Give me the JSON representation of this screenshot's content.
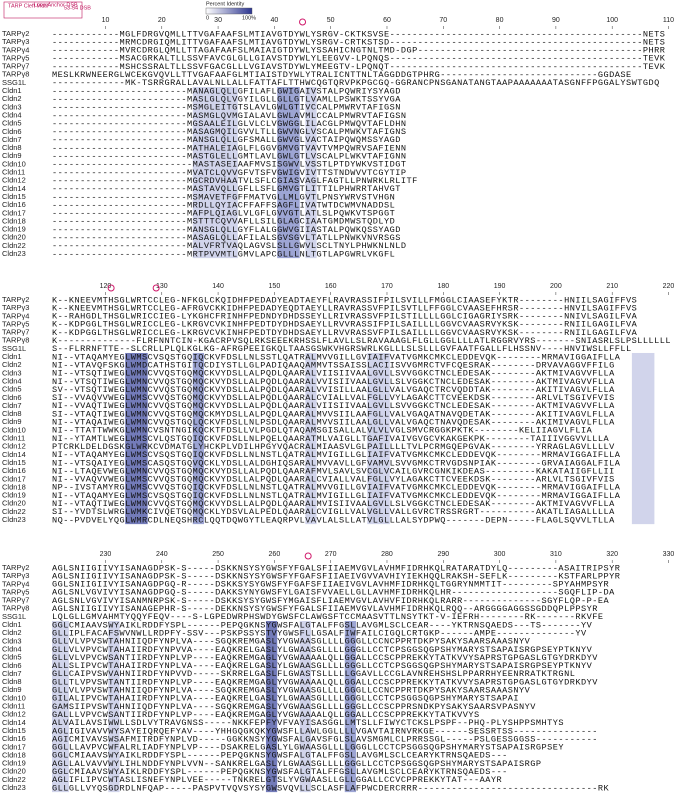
{
  "legend": {
    "cleft": "TARP Cleft Motif",
    "loop": "Loop Anchor DSB",
    "dsb": "53-54 DSB",
    "identity": "Percent Identity",
    "min": "0",
    "max": "100%"
  },
  "names": [
    "TARPγ2",
    "TARPγ3",
    "TARPγ4",
    "TARPγ5",
    "TARPγ7",
    "TARPγ8",
    "SSG1L",
    "Cldn1",
    "Cldn2",
    "Cldn3",
    "Cldn4",
    "Cldn5",
    "Cldn6",
    "Cldn7",
    "Cldn8",
    "Cldn9",
    "Cldn10",
    "Cldn11",
    "Cldn12",
    "Cldn14",
    "Cldn15",
    "Cldn16",
    "Cldn17",
    "Cldn18",
    "Cldn19",
    "Cldn20",
    "Cldn22",
    "Cldn23"
  ],
  "blocks": [
    {
      "positions": [
        10,
        20,
        30,
        40,
        50,
        60,
        70,
        80,
        90,
        100,
        110
      ],
      "sequences": [
        "------------MGLFDRGVQMLLTTVGAFAAFSLMTIAVGTDYWLYSRGV-CKTKSVSE---------------------------------------------NETS",
        "------------MRMCDRGIQMLITTVGAFAAFSLMTIAVGTDYWLYSRGV-CRTKSTSD---------------------------------------------NETS",
        "------------MVRCDRGLQMLLTTAGAFAAFSLMAIAIGTDYWLYSSAHICNGTNLTMD-DGP----------------------------------------PHRR",
        "------------MSACGRKALTLLSSVFAVCGLGLLGIAVSTDYWLYLEEGVV-LPQNQS---------------------------------------------TEVK",
        "------------MSHCSSRALTLLSSVFGACGLLLVGIAVSTDYWLYMEEGTV-LPQNQT---------------------------------------------TEVK",
        "MESLKRWNEERGLWCEKGVQVLLTTVGAFAAFGLMTIAISTDYWLYTRALICNTTNLTAGGDDGTPHRG----------------------------GGDASE",
        "-------------MK-TSRRGRALLAVALNLLALLFATTAFLTTHWCQGTQRVPKPGCGQ-GGRANCPNSGANATANGTAAPAAAAAAATASGNFFPGGALYSWTGDQ",
        "------------------------MANAGLQLLGFILAFLGWIGAIVSTALPQWRIYSYAGD",
        "------------------------MASLGLQLVGYILGLLGLLGTLVAMLLPSWKTSSYVGA",
        "------------------------MSMGLEITGTSLAVLGWLGTIVCCALPMWRVTAFIGSN",
        "------------------------MASMGLQVMGIALAVLGWLAVMLCCALPMWRVTAFIGSN",
        "------------------------MGSAALEILGLVLCLVGWGGLILACGLPMWQVTAFLDHN",
        "------------------------MASAGMQILGVVLTLLGWVNGLVSCALPMWKVTAFIGNS",
        "------------------------MANSGLQLLGFSMALLGWVGLVACTAIPQWQMSSYAGD",
        "------------------------MATHALEIAGLFLGGVGMVGTVAVTVMPQWRVSAFIENN",
        "------------------------MASTGLELLGMTLAVLGWLGTLVSCALPLWKVTAFIGNN",
        "-------------------------MASTASEIAAFMVSISGWVLVSSTLPTDYWKVSTIDGT",
        "------------------------MVATCLQVVGFVTSFVGWIGVIVTTSTNDWVVTCGYTIP",
        "------------------------MGCRDVHAATVLSFLCGIASVAGLFAGTLLPNWRKLRLITF",
        "------------------------MASTAVQLLGFLLSFLGMVGTLITTILPHWRRTAHVGT",
        "------------------------MSMAVETFGFFMATVGLLMLGVTLPNSYWRVSTVHGN",
        "------------------------MRDLLQYIACFFAFFSAGFLIVATWTDCWMVNADDSL",
        "------------------------MAFPLQIAGLVLGFLGVVGTLATLSLPQWKVTSPGGT",
        "------------------------MSTTTCQVVAFLLSILGLAGCIAATGMDMWSTQDLYD",
        "------------------------MANSGLQLLGYFLALGGWVGIIASTALPQWKQSSYAGD",
        "------------------------MASAGLQLLAFILALSGVSGVLTATLLPNWKVNVRSGS",
        "------------------------MALVFRTVAQLAGVSLSLLGWVLSCLTNYLPHWKNLNLD",
        "------------------------MRTPVVMTLGMVLAPCGLLLNLTGTLAPGWRLVKGFL"
      ]
    },
    {
      "positions": [
        120,
        130,
        140,
        150,
        160,
        170,
        180,
        190,
        200,
        210,
        220
      ],
      "sequences": [
        "K--KNEEVMTHSGLWRTCCLEG-NFKGLCKQIDHFPEDADYEADTAEYFLRAVRASSIFPILSVILLFMGGLCIAASEFYKTR--------HNIILSAGIFFVS",
        "K--KNEEVMTHSGLWRTCCLEG-AFRGVCKKIDHFPEDADYEQDTAEYLLRAVRASSVFPILSVTLLFFGGLCVAASEFHRSR--------HNVILSAGIFFVS",
        "K--RAHGDLTHSGLWRICCIEG-LYKGHCFRINHFPEDNDYDHDSSEYLLRIVRASSVFPILSTILLLLGGLCIGAGRIYSRK--------NNIVLSAGILFVA",
        "K--KDPGGLTHSGLWRICCLEG-LKRGVCVKINHFPEDTDYDHDSAEYLLRVVRASSIFPILSAILLLLGGVCVAASRVYKSK--------RNIILGAGILFVA",
        "K--KDPGGLTHSGLWRICCLEG-LKRGVCVKINHFPEDTDYDHDSAEYLLRVVRASSVFPILSAILLLLGGVCVAASRVYKSK--------RNIILGAGILFVA",
        "K--------------FLRFNNTCIN-KGACRPVSQLRKSEEEKRHSSLFLAVLLSLRAVAAAGLFLGLLGGLLLLATLRGGRVYRS-------SNIASRLSLPSLLLLLL",
        "S--FLRRNFTTE--SLCRLLPLQLKGLKG-AFRGPEEIGKQLTAASGSWKVHGRSWRLKGLLLSLSLLLGVFAATFGALLFLHSSNV----HNVIWSLLFFLL",
        "NI--VTAQAMYEGLWMSCVSQSTGQIQCKVFDSLLNLSSTLQATRALMVVGILLGVIAIFVATVGMKCMKCLEDDEVQK--------MRMAVIGGAIFLLA",
        "NI--VTAVQFSKGLWMDCATHSTGITQCDIYSTLLGLPADIQAAQAMMVTSSAISSLACIISVVGMRCTVFCQESRAK--------DRVAVAGGVFFILG",
        "NI--VTSQTIWEGLWMNCVVQSTGQMQCKVYDSLLALPQDLQAARALVIISIIVAALGVLLSVVGGKCTNCLEDESAK--------AKTMIVAGVVFLLA",
        "NI--VTSQTIWEGLWMNCVVQSTGQMQCKVYDSLLALPQDLQAARALVVISIIVAALGVLLSLVGGKCTNCLEDESAK--------AKTMIVAGVVFLLA",
        "SV--VTSQTIWEGLWMNCVVQSTGQMQCKVYDSLLALPQDLQAARALVVISILLAALGLLVALVGAQCTRCVQDDTAK--------AKITIVAGVLFLLA",
        "SI--VVAQVVWEGLWMSCVVQSTGQMQCKVYDSLLALPQDLQAARALCVIALLVALFGLLVYLAGAKCTTCVEEKDSK--------ARLVLTSGIVFVIS",
        "NI--VVAQTIWEGLWMNCVVQSTGQMQCKVYDSLLALPQDLQAARALVIISIIVAALGVLLSVVGGKCTNCLEDESAK--------AKTMIVAGVVFLLA",
        "SI--VTAQTIWEGLWMNCVVQSTGQMQCKMYDSLLALPQDLQAARALMVVSIILAAFGLLVALVGAQATNAVQDETAK--------AKITIVAGVLFLLA",
        "NI--VTAQAIWEGLWMNCVVQSTGQLQCKVFDSLLNLPSDLQAARALMVVSIILAALGLLVALVGAQCTNAVQDESAK--------AKIMIVAGVLFLLA",
        "NI--TTATTWWKGLWMNCVSNTNGIKQCKTFDSLLVLPGDLQTAQAMSGISALLALVLVLVGLSMVCRGGKPKTK--------KELIIAGVLFLIA",
        "NI--YTAMTLWEGLWMSCVLQSTGQIQCKVFDSLLNLPQELQAARATMLVAIGLLTGAFIVAIVGVGCVKAKGEKPK--------TAIIIVGGVVLLLA",
        "PTCRKLDELDGSKGLWRKCVDMATGLYHCKPLVDILHPGYVQACRALMIAASVLGLPAILLLLTVLPCRMGQEPGVAK--------YRRAGLAGVLLLLV",
        "NI--VTAQAMYEGLWMSCVSQSTGQIQCKVFDSLLNLNSTLQATRALMVIGILLGLIAIFVATVGMKCMKCLEDDEVQK--------MRMAVIGGAIFLLA",
        "NI--VTSQAIYEGLWMSCASQSTGQVQCKLYDSLLALDGHIQSARALMVVAVLLGFVAMVLSVVGMKCTRVGDSNPIAK--------GRVAIAGGALFILA",
        "NI--LTAQEVWEGLWMNCVVQSTGQMQCKVYDSLLALPQDLQAARAFMVLSAVLSVCGLVCAILGVRCGNKIKDEAS---------KAKATAIIGFLLII",
        "NI--VVAQVVWEGLWMSCVVQSTGQMQCKVYDSLLALPQDLQAARALCVIALLVALFGLLVYLAGAKCTTCVEEKDSK--------ARLVLTSGIVFVIS",
        "NP--IVSTAMYRGLWMSCVVQSTGQIQCKVFDSLLNLNSTLQATRALMVVGILLGVIAIFVATVGMKCMKCLEDDEVQK--------MRMAVIGGAIFLLA",
        "NI--VTAQAMYEGLWMSCVSQSTGQIQCKVFDSLLNLNSTLQATRALMVIGILLGLIAIFVATVGMKCMKCLEDDEVQK--------MRMAVIGGAIFLLA",
        "NI--VTAQTIWEGLWMNCVVQSTGQMQCKVYDSLLALPQDLQAARALMVISIIVAALGVLLSLVGGKCTNCLEDESAK--------AKTMIVAGVVFLLA",
        "SI--YVDTSLWRGLWMKCIVQETGQMQCKLYDSVLALPEDLQAARALCVIGLLVALVGLLVALLGVRCTRSSRGRT----------AKATLIAGALLLLA",
        "NQ--PVDVELYQGLWMRCDLNEQSHRCLQQTDQWGYTLEAQRPVLVAVLALSLLATVLGLLLALSYDPWQ-------DEPN-----FLAGLSQVVLTLLA"
      ]
    },
    {
      "positions": [
        230,
        240,
        250,
        260,
        270,
        280,
        290,
        300,
        310,
        320,
        330
      ],
      "sequences": [
        "AGLSNIIGIIVYISANAGDPSK-S-----DSKKNSYSYGWSFYFGALSFIIAEMVGVLAVHMFIDRHKQLRATARATDYLQ---------ASAITRIPSYR",
        "AGLSNIIGIIVYISANAGDPSK-S-----DSKKNSYSYGWSFYFGAFSFIIAEIVGVVAVHIYIEKHQQLRAKSH-SEFLK---------KSTFARLPPYR",
        "GGLSNIIGIIVYISANAGDPGQ-R-----DSKKSYSYGWSFYFGAFSFIIAEIVGVLAVHMFIDRHKQLTGGRYNMMTIT---------SPYAHMPSYR",
        "AGLSNLVGVIVYISANAGDPGQ-S-----DAKKSYNYGWSFYLGAISFVVAELLGLLAVHMFIDRHKQLHR-------------------SGQFLIP-DA",
        "AGLSNLVGVIVYISANMNRPSK-S-----DSKKSYSYGWSFYMGAISFLIAEMVGVLAVHVFIDRHKQLRARR--------------SGYFLQP-P-EA",
        "AGLSNIIGIIVYISANAGEPHR-S-----DEKKNSYSYGWSFYFGALSFIIAEMVGVLAVHMFIDRHKQLRQQ--ARGGGGAGGSSGDDQPLPPSYR",
        "LQLGLLGMVAHMTYQQYFEQV----S-LGPEDWRPHSWDYGWSFCLAWGSFTCCMAASVTTLNSYTKT-V-IEFRH--------RK-------RKVFE",
        "GGLCMIAAVSWYAIKLRDDFYSPL------PEPQGKNSYGWSFALGTALFFGSLLAVGMLSCLCEAR----YKTRNSQAEDS---TS-------YV",
        "GLLIPLFACAFSWVNWLLRDPFY-SSV---PSKPSSYSTVYGWSFLLGSALFIWFAILCIGQLCRTGKP------AMPE--------------YV",
        "GLLVLVPVSWTAHNIIQDFYNPLVA----SGQKREMGASLYVGWAASGLLLLGGGLLCCNCPPRTDKPYSAKYSAARSAAASNYV",
        "GLLVLVPVCWTAHAIIRDFYNPVVA----EAQKRELGASLYLGWAASGLLLLGGGLLCCTCPSGGSQGPSHYMARYSTSAPAISRGPSEYPTKNYV",
        "GLLVLVPVCWSANTIIRDFYNPLVP----EAQKREMGAGLYVGWAAAALQLLGGALLCCSCPPREKKYTATKVVYSAPRSTGPGASLGTGYDRKDYV",
        "ALLSLIPVCWTAHAIIRDFYNPLVA----EAQKRELGASLYLGWAASGLLLLGGGLLCCTCPSGGSQGPSHYMARYSTSAPAISRGPSEYPTKNYV",
        "GLLCAIPVSWVAHNIIRDFYNPVVD-----SKRRELGASLFLGWASTSLLLLLGGAVLLCCGLAVNREHSHSLPPARRHYEENRRATKTRGNL",
        "GLLTLVPVSWTANTIIRDFYNPLVP----EAQKREMGAGLYVGWAAAALQLLGGALLCCSCPPREKKYTATKVVYSAPRSTGPGASLGTGYDRKDYV",
        "GLLVLVPVSWTAHNIIQDFYNPLVA----SGQKREMGASLYVGWAASGLLLLGGGLLCCNCPPRTDKPYSAKYSAARSAAASNYV",
        "GILALIPVCWTAHAIIRDFYNPLVA----EAQKRELGASLYLGWAASGLLLLGGGLLCCTCPSGGSQGPSHYMARYSTSAPAI",
        "GAMSIIPVSWTAHNIIQDFYNPLVA----SGQKREMGASLYVGWAASGLLLLGGGLLCCSCPPRSNDKPYSAKYSAARSVPASNYV",
        "GALLLVPVCWSANTIIRDFYNPLVP----EAQKREMGAGLYVGWAAAALQLLGGALLCCSCPPREKKYTATKVVYS",
        "ALVAILAVSIWWLLSDLVYTRAVGNSS-----NKKFEPFYVFVAYISASGGLLMTSLLFIWYCTCKSLPSPF--PHQ-PLYSHPPSMHTYS",
        "AGLIGIVAVVWYSAYEIQRQEFYAV----YHHGQGKQKYGWSFLLAWLGGLLLLVGAVTAIRNVRKGE------SESSRTSS---------------",
        "AGICMIVAVSWSAFMITRDFYNPLVD-----GGKKNSYYGWSFALGAVSFGLSLAVSMGMLCLPRRSSGL-----PSLGESSGGSS-----------",
        "GGLLLAVPVCWFALRLIADFYNPLVP----DSAKRELGASLYLGWAASGLLLLGGGLLCCTCPSGGSQGPSHYMARYSTSAPAISRGPSEY",
        "GGLCMIAAVSWYAIKLRDDFYSPL------PEPQGKNSYGWSFALGTALFFGSLLAVGMLSCLCEARYKTRNSQAEDS---",
        "AGLLALVAVVWYLIHLNDDFYNPLVVN--SANKRELGASLYLGWAASGLLLLGGGLLCCTCPSGGSQGPSHYMARYSTSAPAISRGP",
        "GGLCMIAAVSWYAIKLRDDFYSPL------PEPQGKNSYGWSFALGTALFFGSLLAVGMLSCLCEARYKTRNSQAEDS---",
        "AGLIFLIPVCWTASLISNEFYNPLVEE-----TNKRELGTSLYVGWAASLLGLLGGALLCCVCPPREKKYTAT---AAYR",
        "GLLGLLVYQSGDRDLNFQAP-----PASPVTVQVSYSYGWSVQVLLSCLASFLAFPWCDERCRRR--------------------------------RK"
      ]
    }
  ]
}
